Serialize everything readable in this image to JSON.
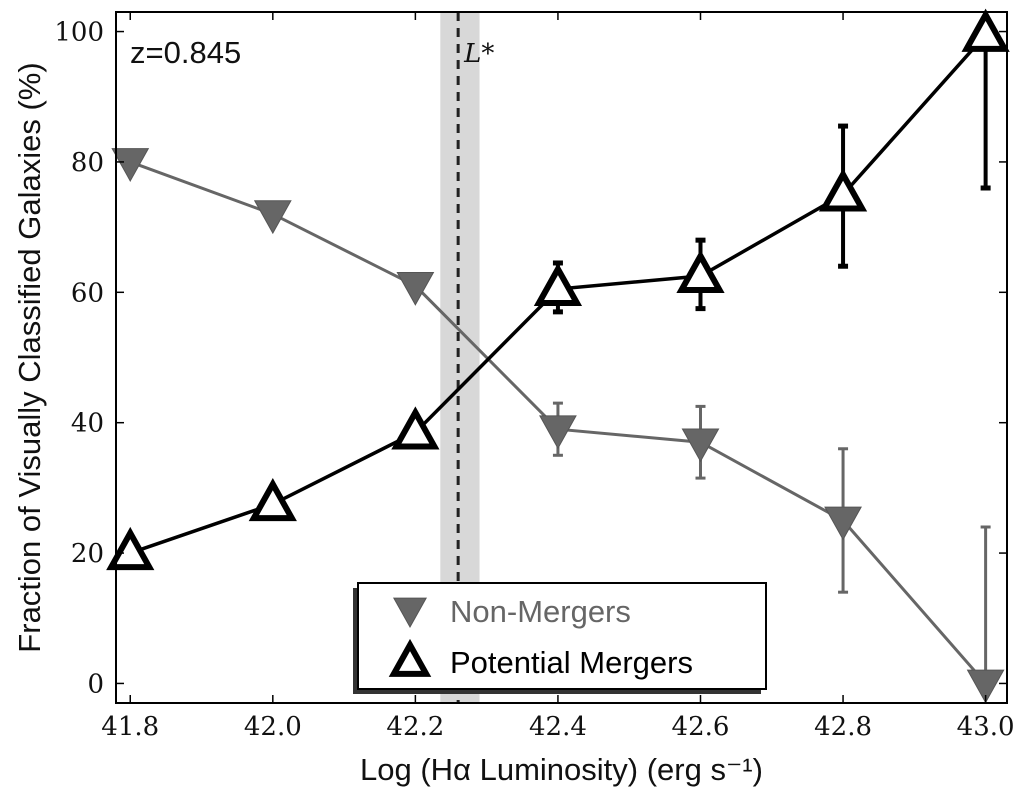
{
  "chart_data": {
    "type": "line",
    "xlabel": "Log (Hα Luminosity) (erg s⁻¹)",
    "ylabel": "Fraction of Visually Classified Galaxies (%)",
    "xlim": [
      41.78,
      43.03
    ],
    "ylim": [
      -3,
      103
    ],
    "x_ticks": [
      "41.8",
      "42.0",
      "42.2",
      "42.4",
      "42.6",
      "42.8",
      "43.0"
    ],
    "y_ticks": [
      "0",
      "20",
      "40",
      "60",
      "80",
      "100"
    ],
    "annotation": "z=0.845",
    "vline": {
      "label": "L*",
      "x": 42.26,
      "band": [
        42.235,
        42.29
      ],
      "band_color": "#d8d8d8"
    },
    "legend": {
      "placement": "lower-center"
    },
    "series": [
      {
        "name": "Non-Mergers",
        "marker": "down-triangle",
        "color": "#666666",
        "points": [
          {
            "x": 41.8,
            "y": 80,
            "lo": 80,
            "hi": 80
          },
          {
            "x": 42.0,
            "y": 72,
            "lo": 72,
            "hi": 72
          },
          {
            "x": 42.2,
            "y": 61,
            "lo": 61,
            "hi": 61
          },
          {
            "x": 42.4,
            "y": 39,
            "lo": 35,
            "hi": 43
          },
          {
            "x": 42.6,
            "y": 37,
            "lo": 31.5,
            "hi": 42.5
          },
          {
            "x": 42.8,
            "y": 25,
            "lo": 14,
            "hi": 36
          },
          {
            "x": 43.0,
            "y": 0,
            "lo": 0,
            "hi": 24
          }
        ]
      },
      {
        "name": "Potential Mergers",
        "marker": "up-triangle",
        "color": "#000000",
        "points": [
          {
            "x": 41.8,
            "y": 20,
            "lo": 20,
            "hi": 20
          },
          {
            "x": 42.0,
            "y": 27.5,
            "lo": 27.5,
            "hi": 27.5
          },
          {
            "x": 42.2,
            "y": 38.5,
            "lo": 38.5,
            "hi": 38.5
          },
          {
            "x": 42.4,
            "y": 60.5,
            "lo": 57,
            "hi": 64.5
          },
          {
            "x": 42.6,
            "y": 62.5,
            "lo": 57.5,
            "hi": 68
          },
          {
            "x": 42.8,
            "y": 75,
            "lo": 64,
            "hi": 85.5
          },
          {
            "x": 43.0,
            "y": 99.5,
            "lo": 76,
            "hi": 99.5
          }
        ]
      }
    ]
  }
}
